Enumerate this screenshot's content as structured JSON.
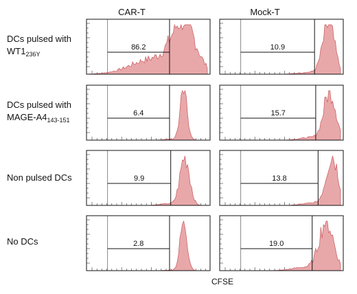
{
  "columns": [
    "CAR-T",
    "Mock-T"
  ],
  "rows": [
    {
      "label_main": "DCs pulsed with",
      "label_line2": "WT1",
      "label_sub": "236Y"
    },
    {
      "label_main": "DCs pulsed with",
      "label_line2": "MAGE-A4",
      "label_sub": "143-151"
    },
    {
      "label_main": "Non pulsed DCs",
      "label_line2": "",
      "label_sub": ""
    },
    {
      "label_main": "No DCs",
      "label_line2": "",
      "label_sub": ""
    }
  ],
  "chart_data": {
    "type": "histogram-grid",
    "xlabel": "CFSE",
    "colors": {
      "fill": "#e8a8aa",
      "stroke": "#c8585c",
      "frame": "#111111",
      "gate_line": "#111111"
    },
    "panels": [
      {
        "row": 0,
        "col": "CAR-T",
        "gate_percent": "86.2",
        "peak_center": 0.8,
        "spread": 0.1,
        "divided_fraction": 0.86
      },
      {
        "row": 0,
        "col": "Mock-T",
        "gate_percent": "10.9",
        "peak_center": 0.9,
        "spread": 0.05,
        "divided_fraction": 0.11
      },
      {
        "row": 1,
        "col": "CAR-T",
        "gate_percent": "6.4",
        "peak_center": 0.8,
        "spread": 0.03,
        "divided_fraction": 0.06
      },
      {
        "row": 1,
        "col": "Mock-T",
        "gate_percent": "15.7",
        "peak_center": 0.91,
        "spread": 0.05,
        "divided_fraction": 0.16
      },
      {
        "row": 2,
        "col": "CAR-T",
        "gate_percent": "9.9",
        "peak_center": 0.81,
        "spread": 0.04,
        "divided_fraction": 0.1
      },
      {
        "row": 2,
        "col": "Mock-T",
        "gate_percent": "13.8",
        "peak_center": 0.93,
        "spread": 0.05,
        "divided_fraction": 0.14
      },
      {
        "row": 3,
        "col": "CAR-T",
        "gate_percent": "2.8",
        "peak_center": 0.8,
        "spread": 0.03,
        "divided_fraction": 0.03
      },
      {
        "row": 3,
        "col": "Mock-T",
        "gate_percent": "19.0",
        "peak_center": 0.88,
        "spread": 0.06,
        "divided_fraction": 0.19
      }
    ]
  }
}
